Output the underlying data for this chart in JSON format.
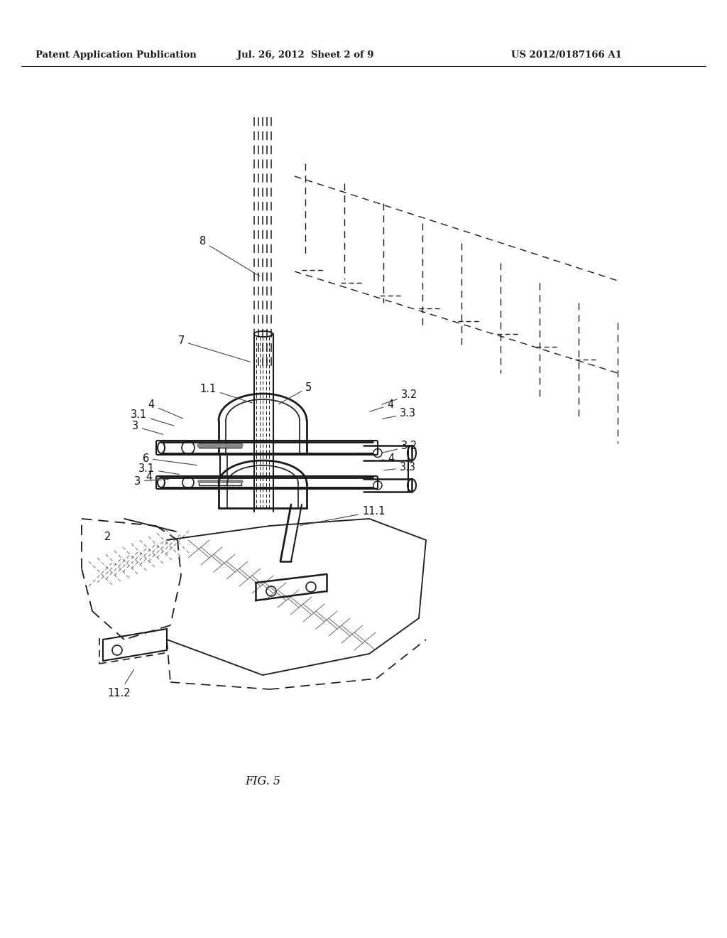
{
  "bg_color": "#ffffff",
  "line_color": "#1a1a1a",
  "header_left": "Patent Application Publication",
  "header_center": "Jul. 26, 2012  Sheet 2 of 9",
  "header_right": "US 2012/0187166 A1",
  "figure_label": "FIG. 5"
}
